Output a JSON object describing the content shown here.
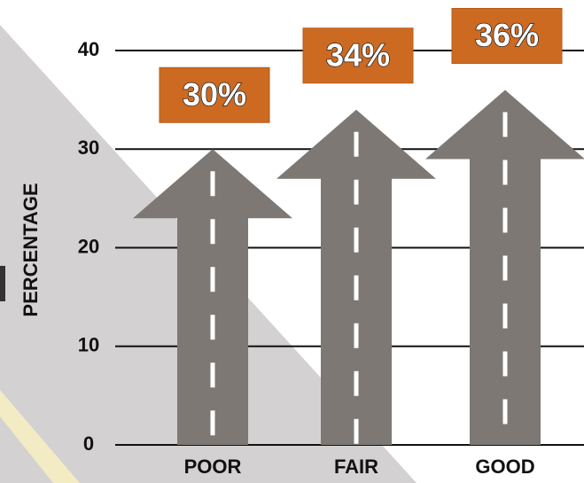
{
  "chart_data": {
    "type": "arrow-bar",
    "y_label": "PERCENTAGE",
    "categories": [
      "POOR",
      "FAIR",
      "GOOD"
    ],
    "values": [
      30,
      34,
      36
    ],
    "value_labels": [
      "30%",
      "34%",
      "36%"
    ],
    "color": "#7d7874",
    "ylim": [
      0,
      40
    ],
    "yticks": [
      0,
      10,
      20,
      30,
      40
    ],
    "grid": true
  }
}
